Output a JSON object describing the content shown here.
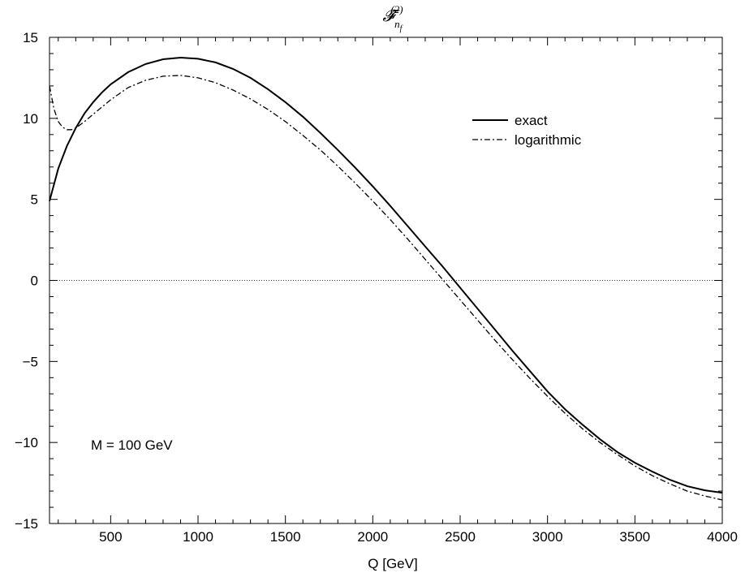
{
  "chart_data": {
    "type": "line",
    "title": "F̂_{n_f}^{(2)}",
    "xlabel": "Q [GeV]",
    "ylabel": "",
    "xlim": [
      150,
      4000
    ],
    "ylim": [
      -15,
      15
    ],
    "xticks": [
      500,
      1000,
      1500,
      2000,
      2500,
      3000,
      3500,
      4000
    ],
    "yticks": [
      15,
      10,
      5,
      0,
      -5,
      -10,
      -15
    ],
    "grid": false,
    "zero_line": true,
    "legend_position": "top-right",
    "annotation": "M = 100 GeV",
    "series": [
      {
        "name": "exact",
        "style": "solid",
        "x": [
          150,
          200,
          250,
          300,
          350,
          400,
          450,
          500,
          600,
          700,
          800,
          900,
          1000,
          1100,
          1200,
          1300,
          1400,
          1500,
          1600,
          1700,
          1800,
          1900,
          2000,
          2100,
          2200,
          2300,
          2400,
          2500,
          2600,
          2700,
          2800,
          2900,
          3000,
          3100,
          3200,
          3300,
          3400,
          3500,
          3600,
          3700,
          3800,
          3900,
          4000
        ],
        "y": [
          4.9,
          6.9,
          8.3,
          9.4,
          10.3,
          11.0,
          11.6,
          12.1,
          12.85,
          13.35,
          13.65,
          13.75,
          13.68,
          13.45,
          13.05,
          12.5,
          11.8,
          11.0,
          10.1,
          9.1,
          8.05,
          6.95,
          5.8,
          4.6,
          3.35,
          2.1,
          0.85,
          -0.45,
          -1.75,
          -3.05,
          -4.35,
          -5.6,
          -6.85,
          -7.95,
          -8.9,
          -9.8,
          -10.6,
          -11.25,
          -11.8,
          -12.3,
          -12.7,
          -12.95,
          -13.1
        ]
      },
      {
        "name": "logarithmic",
        "style": "dash-dot",
        "x": [
          150,
          175,
          200,
          225,
          250,
          275,
          300,
          350,
          400,
          450,
          500,
          600,
          700,
          800,
          900,
          1000,
          1100,
          1200,
          1300,
          1400,
          1500,
          1600,
          1700,
          1800,
          1900,
          2000,
          2100,
          2200,
          2300,
          2400,
          2500,
          2600,
          2700,
          2800,
          2900,
          3000,
          3100,
          3200,
          3300,
          3400,
          3500,
          3600,
          3700,
          3800,
          3900,
          4000
        ],
        "y": [
          12.0,
          10.6,
          9.8,
          9.45,
          9.3,
          9.3,
          9.4,
          9.8,
          10.25,
          10.7,
          11.15,
          11.9,
          12.35,
          12.6,
          12.65,
          12.5,
          12.2,
          11.75,
          11.2,
          10.55,
          9.8,
          8.95,
          8.05,
          7.05,
          6.0,
          4.9,
          3.75,
          2.55,
          1.3,
          0.05,
          -1.2,
          -2.45,
          -3.7,
          -4.9,
          -6.05,
          -7.15,
          -8.2,
          -9.15,
          -10.0,
          -10.75,
          -11.45,
          -12.05,
          -12.55,
          -13.0,
          -13.3,
          -13.55
        ]
      }
    ]
  }
}
